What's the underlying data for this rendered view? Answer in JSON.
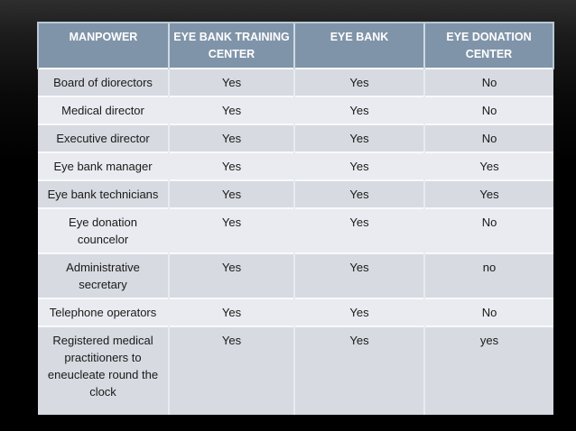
{
  "table": {
    "headers": [
      "MANPOWER",
      "EYE BANK TRAINING CENTER",
      "EYE BANK",
      "EYE DONATION CENTER"
    ],
    "rows": [
      {
        "label": "Board of diorectors",
        "values": [
          "Yes",
          "Yes",
          "No"
        ]
      },
      {
        "label": "Medical director",
        "values": [
          "Yes",
          "Yes",
          "No"
        ]
      },
      {
        "label": "Executive director",
        "values": [
          "Yes",
          "Yes",
          "No"
        ]
      },
      {
        "label": "Eye bank manager",
        "values": [
          "Yes",
          "Yes",
          "Yes"
        ]
      },
      {
        "label": "Eye bank technicians",
        "values": [
          "Yes",
          "Yes",
          "Yes"
        ]
      },
      {
        "label": "Eye donation councelor",
        "values": [
          "Yes",
          "Yes",
          "No"
        ]
      },
      {
        "label": "Administrative secretary",
        "values": [
          "Yes",
          "Yes",
          "no"
        ]
      },
      {
        "label": "Telephone operators",
        "values": [
          "Yes",
          "Yes",
          "No"
        ]
      },
      {
        "label": "Registered medical practitioners to eneucleate round the clock",
        "values": [
          "Yes",
          "Yes",
          "yes"
        ]
      }
    ]
  },
  "colors": {
    "header_bg": "#8094a9",
    "header_text": "#ffffff",
    "row_dark": "#d7dae1",
    "row_light": "#e9ebf0",
    "grid_light": "#f7f9fb",
    "grid_vertical": "#e8ecf1",
    "header_divider": "#cdd9e4",
    "header_outline": "#b9c8d6",
    "body_text": "#1a1a1a",
    "background_top": "#2e2e2e",
    "background_bottom": "#000000"
  }
}
